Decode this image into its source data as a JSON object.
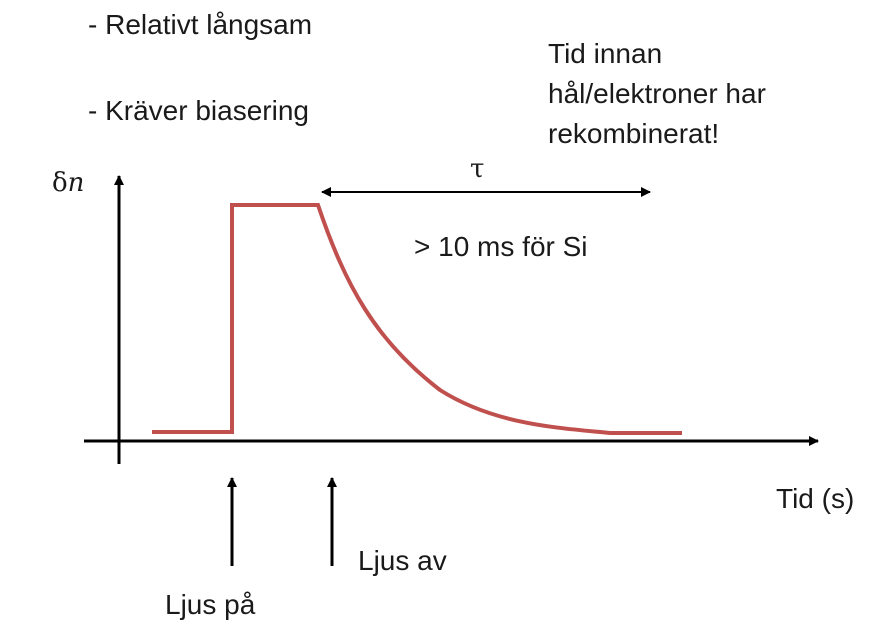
{
  "bullets": [
    "- Relativt långsam",
    "- Kräver biasering"
  ],
  "note_lines": [
    "Tid innan",
    "hål/elektroner har",
    "rekombinerat!"
  ],
  "tau_symbol": "τ",
  "lifetime_text": "> 10 ms för Si",
  "axes": {
    "y_symbol": "δ",
    "y_var": "n",
    "x_label": "Tid (s)"
  },
  "events": {
    "light_on": "Ljus på",
    "light_off": "Ljus av"
  },
  "colors": {
    "curve": "#c0504d",
    "axis": "#000000"
  }
}
